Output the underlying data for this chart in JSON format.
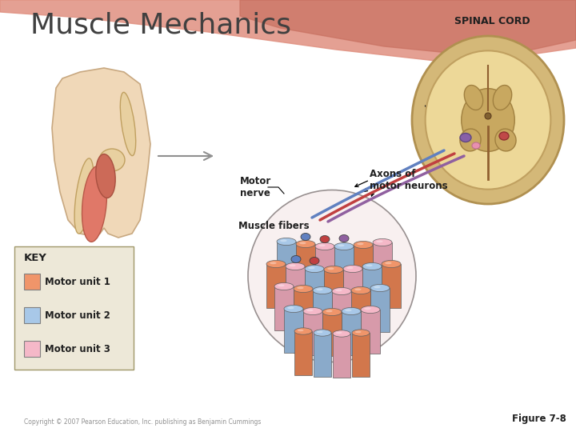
{
  "title": "Muscle Mechanics",
  "figure_label": "Figure 7-8",
  "copyright": "Copyright © 2007 Pearson Education, Inc. publishing as Benjamin Cummings",
  "spinal_cord_label": "SPINAL CORD",
  "motor_nerve_label": "Motor\nnerve",
  "axons_label": "Axons of\nmotor neurons",
  "muscle_fibers_label": "Muscle fibers",
  "key_title": "KEY",
  "motor_units": [
    "Motor unit 1",
    "Motor unit 2",
    "Motor unit 3"
  ],
  "motor_unit_colors": [
    "#F0956A",
    "#A8C8E8",
    "#F5B8C8"
  ],
  "bg_color": "#FFFFFF",
  "title_color": "#404040",
  "nerve_color1": "#C04040",
  "nerve_color2": "#6080C0",
  "nerve_color3": "#9060A0",
  "key_bg": "#EDE8D8",
  "spinal_cord_outer": "#D4B87A",
  "spinal_cord_inner": "#EDD89A",
  "spinal_cord_gm": "#C8A860"
}
